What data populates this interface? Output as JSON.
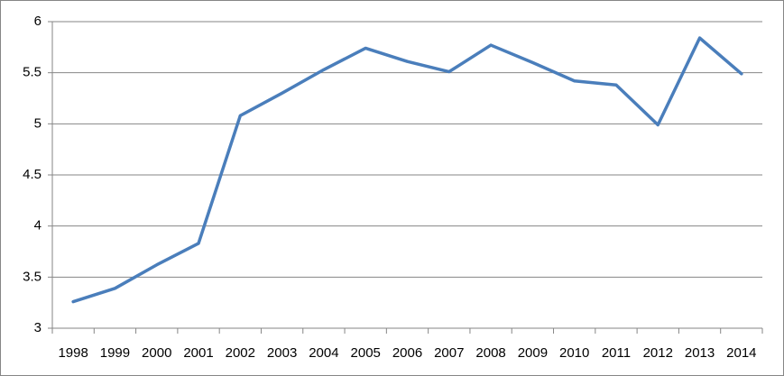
{
  "chart_data": {
    "type": "line",
    "categories": [
      "1998",
      "1999",
      "2000",
      "2001",
      "2002",
      "2003",
      "2004",
      "2005",
      "2006",
      "2007",
      "2008",
      "2009",
      "2010",
      "2011",
      "2012",
      "2013",
      "2014"
    ],
    "series": [
      {
        "color": "#4a7ebb",
        "values": [
          3.26,
          3.39,
          3.62,
          3.83,
          5.08,
          5.3,
          5.53,
          5.74,
          5.61,
          5.51,
          5.77,
          5.6,
          5.42,
          5.38,
          4.99,
          5.84,
          5.49
        ]
      }
    ],
    "ylim": [
      3,
      6
    ],
    "yticks": [
      3,
      3.5,
      4,
      4.5,
      5,
      5.5,
      6
    ],
    "grid": true
  }
}
